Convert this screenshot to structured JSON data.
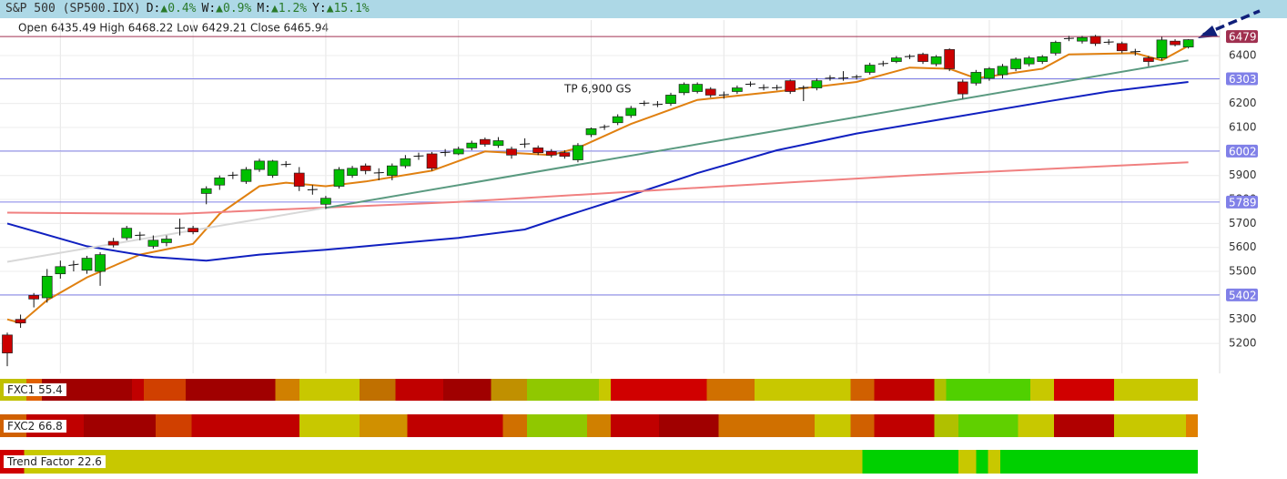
{
  "chart_data": {
    "type": "candlestick",
    "title": "S&P 500 (SP500.IDX)",
    "changes": [
      {
        "label": "D:",
        "value": "▲0.4%"
      },
      {
        "label": "W:",
        "value": "▲0.9%"
      },
      {
        "label": "M:",
        "value": "▲1.2%"
      },
      {
        "label": "Y:",
        "value": "▲15.1%"
      }
    ],
    "ohlc_label": "Open 6435.49  High 6468.22  Low 6429.21  Close 6465.94",
    "annotation": "TP 6,900 GS",
    "ylim": [
      5075,
      6548
    ],
    "yticks": [
      5200,
      5300,
      5400,
      5500,
      5600,
      5700,
      5800,
      5900,
      6000,
      6100,
      6200,
      6300,
      6400
    ],
    "grid": true,
    "up_color": "#00c000",
    "down_color": "#cc0000",
    "open": [
      5235,
      5300,
      5400,
      5390,
      5490,
      5525,
      5505,
      5500,
      5625,
      5640,
      5650,
      5605,
      5620,
      5680,
      5680,
      5825,
      5860,
      5900,
      5875,
      5925,
      5900,
      5945,
      5910,
      5840,
      5780,
      5855,
      5900,
      5940,
      5910,
      5900,
      5940,
      5980,
      5990,
      5995,
      5990,
      6015,
      6050,
      6025,
      6010,
      6030,
      6015,
      6000,
      5995,
      5965,
      6070,
      6100,
      6120,
      6150,
      6200,
      6195,
      6200,
      6245,
      6250,
      6260,
      6235,
      6250,
      6280,
      6265,
      6265,
      6295,
      6265,
      6265,
      6305,
      6305,
      6310,
      6330,
      6365,
      6375,
      6395,
      6405,
      6365,
      6425,
      6290,
      6285,
      6305,
      6320,
      6345,
      6365,
      6375,
      6410,
      6470,
      6460,
      6480,
      6455,
      6450,
      6415,
      6390,
      6390,
      6460,
      6435.49
    ],
    "high": [
      5245,
      5320,
      5410,
      5510,
      5545,
      5545,
      5565,
      5580,
      5640,
      5690,
      5665,
      5650,
      5650,
      5720,
      5690,
      5855,
      5900,
      5915,
      5935,
      5970,
      5965,
      5960,
      5935,
      5860,
      5815,
      5935,
      5940,
      5950,
      5930,
      5950,
      5985,
      5995,
      5998,
      6010,
      6020,
      6045,
      6058,
      6060,
      6020,
      6055,
      6025,
      6010,
      6005,
      6035,
      6100,
      6112,
      6155,
      6190,
      6212,
      6210,
      6245,
      6288,
      6288,
      6268,
      6250,
      6275,
      6292,
      6280,
      6278,
      6300,
      6275,
      6305,
      6318,
      6335,
      6320,
      6370,
      6378,
      6398,
      6405,
      6412,
      6402,
      6430,
      6300,
      6340,
      6352,
      6365,
      6392,
      6398,
      6402,
      6462,
      6482,
      6482,
      6486,
      6468,
      6458,
      6428,
      6398,
      6478,
      6468,
      6468.22
    ],
    "low": [
      5105,
      5265,
      5350,
      5370,
      5470,
      5500,
      5490,
      5440,
      5600,
      5630,
      5630,
      5595,
      5605,
      5650,
      5655,
      5780,
      5840,
      5885,
      5865,
      5915,
      5890,
      5935,
      5835,
      5820,
      5760,
      5845,
      5890,
      5905,
      5880,
      5880,
      5930,
      5965,
      5920,
      5980,
      5985,
      6005,
      6020,
      6015,
      5970,
      6015,
      5985,
      5975,
      5970,
      5955,
      6060,
      6090,
      6110,
      6140,
      6190,
      6185,
      6190,
      6235,
      6242,
      6225,
      6220,
      6240,
      6270,
      6255,
      6255,
      6240,
      6210,
      6255,
      6295,
      6295,
      6300,
      6320,
      6355,
      6368,
      6385,
      6365,
      6355,
      6335,
      6220,
      6275,
      6295,
      6305,
      6335,
      6355,
      6365,
      6400,
      6460,
      6450,
      6440,
      6445,
      6410,
      6400,
      6355,
      6380,
      6438,
      6429.21
    ],
    "close": [
      5160,
      5285,
      5385,
      5480,
      5520,
      5530,
      5555,
      5570,
      5610,
      5680,
      5652,
      5630,
      5635,
      5682,
      5665,
      5845,
      5890,
      5902,
      5925,
      5960,
      5960,
      5947,
      5855,
      5842,
      5805,
      5925,
      5930,
      5920,
      5912,
      5940,
      5970,
      5982,
      5930,
      5997,
      6010,
      6035,
      6030,
      6045,
      5985,
      6032,
      5995,
      5985,
      5980,
      6025,
      6095,
      6105,
      6145,
      6180,
      6202,
      6197,
      6235,
      6280,
      6280,
      6235,
      6237,
      6265,
      6282,
      6267,
      6267,
      6250,
      6267,
      6295,
      6307,
      6307,
      6312,
      6360,
      6367,
      6390,
      6397,
      6375,
      6395,
      6345,
      6240,
      6330,
      6345,
      6355,
      6385,
      6390,
      6395,
      6455,
      6472,
      6475,
      6450,
      6457,
      6420,
      6417,
      6375,
      6465,
      6445,
      6465.94
    ],
    "lines": [
      {
        "color": "#e08010",
        "x": [
          0,
          1,
          3,
          6,
          10,
          14,
          16,
          19,
          21,
          24,
          27,
          32,
          36,
          41,
          43,
          47,
          52,
          58,
          64,
          68,
          71,
          73,
          78,
          80,
          85,
          87,
          89
        ],
        "values": [
          5300,
          5285,
          5380,
          5475,
          5570,
          5615,
          5740,
          5855,
          5870,
          5855,
          5875,
          5920,
          6000,
          5985,
          6015,
          6115,
          6215,
          6250,
          6290,
          6350,
          6345,
          6305,
          6345,
          6405,
          6410,
          6380,
          6440
        ]
      },
      {
        "color": "#1020c0",
        "x": [
          0,
          6,
          11,
          15,
          19,
          24,
          30,
          34,
          39,
          42,
          46,
          52,
          58,
          64,
          71,
          78,
          83,
          89
        ],
        "values": [
          5700,
          5605,
          5560,
          5545,
          5570,
          5590,
          5620,
          5640,
          5675,
          5730,
          5800,
          5910,
          6005,
          6075,
          6140,
          6205,
          6250,
          6290
        ]
      },
      {
        "color": "#f08080",
        "x": [
          0,
          13,
          34,
          54,
          68,
          89
        ],
        "values": [
          5745,
          5740,
          5790,
          5855,
          5900,
          5955
        ]
      },
      {
        "color": "#5a9a80",
        "x": [
          24,
          89
        ],
        "values": [
          5765,
          6380
        ]
      },
      {
        "color": "#d8d8d8",
        "x": [
          0,
          24
        ],
        "values": [
          5540,
          5765
        ]
      }
    ],
    "levels": [
      {
        "value": 6479,
        "color": "#a03050"
      },
      {
        "value": 6303,
        "color": "#8080e8"
      },
      {
        "value": 6002,
        "color": "#8080e8"
      },
      {
        "value": 5789,
        "color": "#8080e8"
      },
      {
        "value": 5402,
        "color": "#8080e8"
      }
    ],
    "indicators": [
      "FXC1 55.4",
      "FXC2 66.8",
      "Trend Factor 22.6"
    ]
  }
}
